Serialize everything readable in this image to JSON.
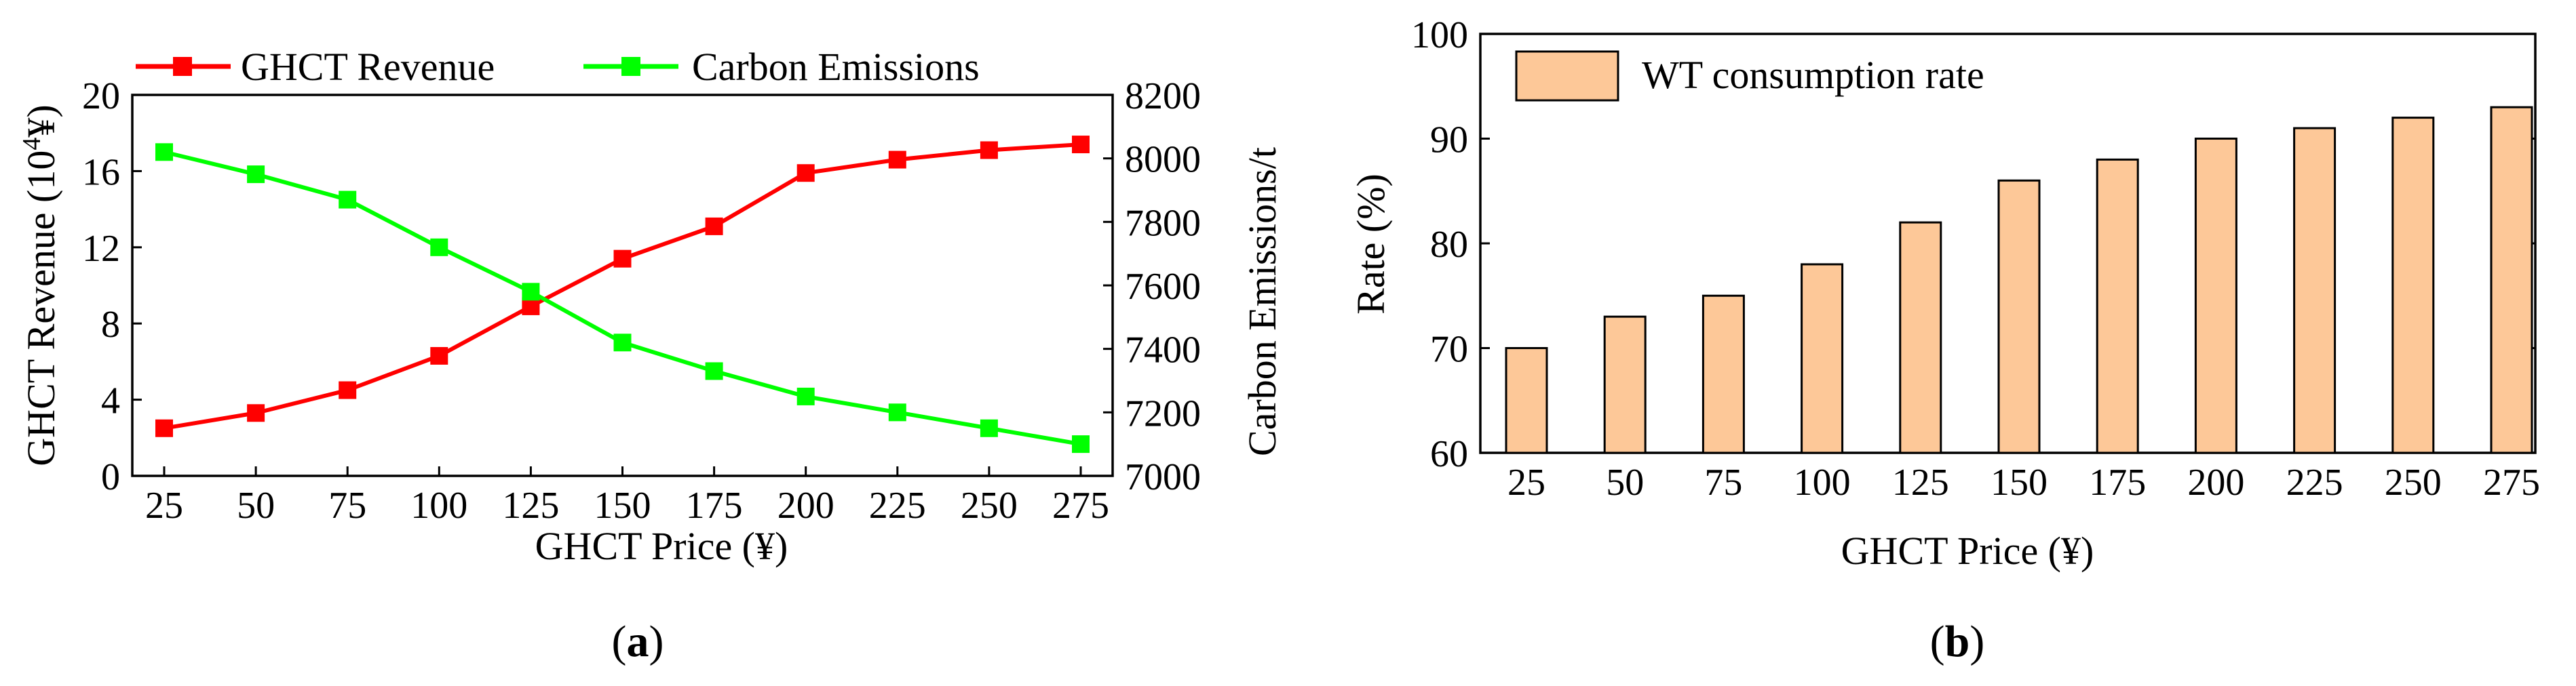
{
  "chart_data": [
    {
      "type": "line",
      "panel_label": "a",
      "categories": [
        25,
        50,
        75,
        100,
        125,
        150,
        175,
        200,
        225,
        250,
        275
      ],
      "xlabel": "GHCT Price (¥)",
      "y_left": {
        "label_prefix": "GHCT Revenue (10",
        "label_sup": "4",
        "label_suffix": "¥)",
        "ylim": [
          0,
          20
        ],
        "ticks": [
          0,
          4,
          8,
          12,
          16,
          20
        ]
      },
      "y_right": {
        "label": "Carbon Emissions/t",
        "ylim": [
          7000,
          8200
        ],
        "ticks": [
          7000,
          7200,
          7400,
          7600,
          7800,
          8000,
          8200
        ]
      },
      "legend_position": "top",
      "series": [
        {
          "name": "GHCT Revenue",
          "axis": "left",
          "color": "#ff0000",
          "values": [
            2.5,
            3.3,
            4.5,
            6.3,
            8.9,
            11.4,
            13.1,
            15.9,
            16.6,
            17.1,
            17.4
          ]
        },
        {
          "name": "Carbon Emissions",
          "axis": "right",
          "color": "#00ff00",
          "values": [
            8020,
            7950,
            7870,
            7720,
            7580,
            7420,
            7330,
            7250,
            7200,
            7150,
            7100
          ]
        }
      ]
    },
    {
      "type": "bar",
      "panel_label": "b",
      "categories": [
        25,
        50,
        75,
        100,
        125,
        150,
        175,
        200,
        225,
        250,
        275
      ],
      "xlabel": "GHCT Price (¥)",
      "ylabel": "Rate (%)",
      "ylim": [
        60,
        100
      ],
      "yticks": [
        60,
        70,
        80,
        90,
        100
      ],
      "legend_position": "top-left",
      "series": [
        {
          "name": "WT consumption rate",
          "color": "#fdc898",
          "values": [
            70,
            73,
            75,
            78,
            82,
            86,
            88,
            90,
            91,
            92,
            93
          ]
        }
      ]
    }
  ],
  "captions": {
    "a_open": "(",
    "a_label": "a",
    "a_close": ")",
    "b_open": "(",
    "b_label": "b",
    "b_close": ")"
  }
}
